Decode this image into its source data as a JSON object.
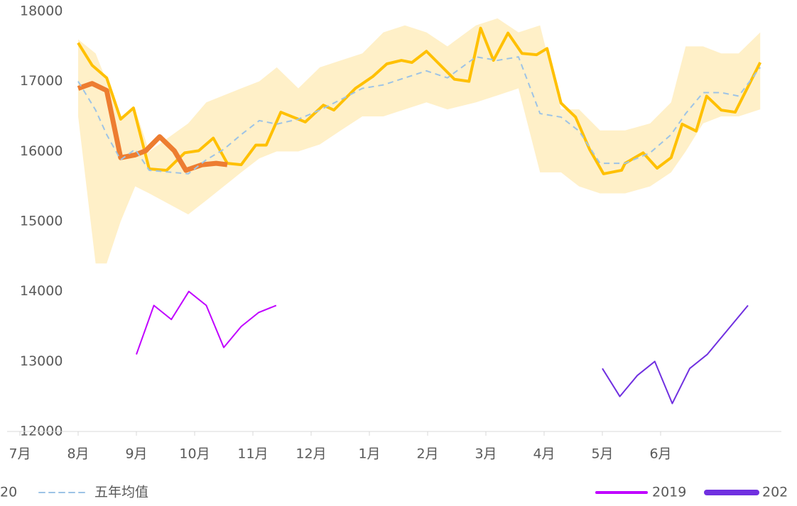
{
  "chart_data": {
    "type": "line",
    "categories": [
      "7月",
      "8月",
      "9月",
      "10月",
      "11月",
      "12月",
      "1月",
      "2月",
      "3月",
      "4月",
      "5月",
      "6月"
    ],
    "xlim": [
      -0.25,
      13.2
    ],
    "ylim": [
      12000,
      18000
    ],
    "yticks": [
      12000,
      13000,
      14000,
      15000,
      16000,
      17000,
      18000
    ],
    "band": {
      "color": "#fff0c8",
      "x": [
        1.0,
        1.3,
        1.49,
        1.73,
        1.98,
        2.22,
        2.89,
        3.2,
        3.5,
        3.8,
        4.11,
        4.41,
        4.78,
        5.15,
        5.51,
        5.88,
        6.24,
        6.61,
        6.98,
        7.34,
        7.83,
        8.2,
        8.56,
        8.93,
        9.29,
        9.6,
        9.96,
        10.39,
        10.82,
        11.18,
        11.43,
        11.73,
        12.04,
        12.34,
        12.71
      ],
      "upper": [
        17600,
        17400,
        17000,
        16500,
        16600,
        16000,
        16400,
        16700,
        16800,
        16900,
        17000,
        17200,
        16900,
        17200,
        17300,
        17400,
        17700,
        17800,
        17700,
        17500,
        17800,
        17900,
        17700,
        17800,
        16600,
        16600,
        16300,
        16300,
        16400,
        16700,
        17500,
        17500,
        17400,
        17400,
        17700
      ],
      "lower": [
        16500,
        14400,
        14400,
        15000,
        15500,
        15400,
        15100,
        15300,
        15500,
        15700,
        15900,
        16000,
        16000,
        16100,
        16300,
        16500,
        16500,
        16600,
        16700,
        16600,
        16700,
        16800,
        16900,
        15700,
        15700,
        15500,
        15400,
        15400,
        15500,
        15700,
        16000,
        16400,
        16500,
        16500,
        16600
      ]
    },
    "series": [
      {
        "color": "#ffc000",
        "width": 4,
        "x": [
          1.0,
          1.24,
          1.49,
          1.73,
          1.95,
          2.22,
          2.52,
          2.83,
          3.07,
          3.32,
          3.56,
          3.8,
          4.05,
          4.23,
          4.48,
          4.9,
          5.21,
          5.39,
          5.76,
          6.06,
          6.3,
          6.55,
          6.73,
          6.98,
          7.46,
          7.71,
          7.91,
          8.13,
          8.38,
          8.62,
          8.87,
          9.05,
          9.29,
          9.54,
          9.78,
          10.02,
          10.33,
          10.39,
          10.7,
          10.94,
          11.18,
          11.37,
          11.61,
          11.79,
          12.04,
          12.28,
          12.71
        ],
        "values": [
          17550,
          17230,
          17050,
          16460,
          16620,
          15750,
          15730,
          15980,
          16010,
          16190,
          15830,
          15810,
          16090,
          16090,
          16560,
          16420,
          16660,
          16590,
          16900,
          17070,
          17250,
          17300,
          17270,
          17430,
          17030,
          17000,
          17760,
          17300,
          17690,
          17400,
          17380,
          17470,
          16690,
          16490,
          16030,
          15680,
          15730,
          15830,
          15980,
          15760,
          15910,
          16390,
          16290,
          16790,
          16590,
          16560,
          17270
        ]
      },
      {
        "name": "20",
        "color": "#ed7d31",
        "width": 7,
        "x": [
          1.0,
          1.24,
          1.49,
          1.73,
          1.98,
          2.16,
          2.4,
          2.65,
          2.85,
          3.13,
          3.37,
          3.56
        ],
        "values": [
          16900,
          16970,
          16870,
          15910,
          15950,
          16010,
          16210,
          16010,
          15730,
          15810,
          15830,
          15810
        ]
      },
      {
        "name": "五年均值",
        "color": "#9dc3e6",
        "width": 2,
        "dash": true,
        "x": [
          1.0,
          1.3,
          1.49,
          1.73,
          1.98,
          2.22,
          2.89,
          3.2,
          3.5,
          3.8,
          4.11,
          4.41,
          4.78,
          5.15,
          5.51,
          5.88,
          6.24,
          6.61,
          6.98,
          7.34,
          7.83,
          8.2,
          8.56,
          8.93,
          9.29,
          9.6,
          9.96,
          10.39,
          10.82,
          11.18,
          11.43,
          11.73,
          12.04,
          12.34,
          12.71
        ],
        "values": [
          17000,
          16590,
          16240,
          15880,
          16030,
          15730,
          15680,
          15880,
          16030,
          16240,
          16440,
          16390,
          16460,
          16590,
          16740,
          16900,
          16950,
          17050,
          17150,
          17050,
          17350,
          17300,
          17350,
          16540,
          16490,
          16290,
          15830,
          15830,
          15980,
          16240,
          16540,
          16840,
          16840,
          16790,
          17200
        ]
      },
      {
        "name": "2019",
        "color": "#c000ff",
        "width": 2,
        "x": [
          2.0,
          2.3,
          2.6,
          2.9,
          3.2,
          3.5,
          3.8,
          4.1,
          4.4
        ],
        "values": [
          13100,
          13800,
          13600,
          14000,
          13800,
          13200,
          13500,
          13700,
          13800
        ]
      },
      {
        "name": "202",
        "color": "#7030e0",
        "width": 2,
        "x": [
          10.0,
          10.3,
          10.6,
          10.9,
          11.2,
          11.5,
          11.8,
          12.1,
          12.5
        ],
        "values": [
          12900,
          12500,
          12800,
          13000,
          12400,
          12900,
          13100,
          13400,
          13800
        ]
      }
    ]
  }
}
